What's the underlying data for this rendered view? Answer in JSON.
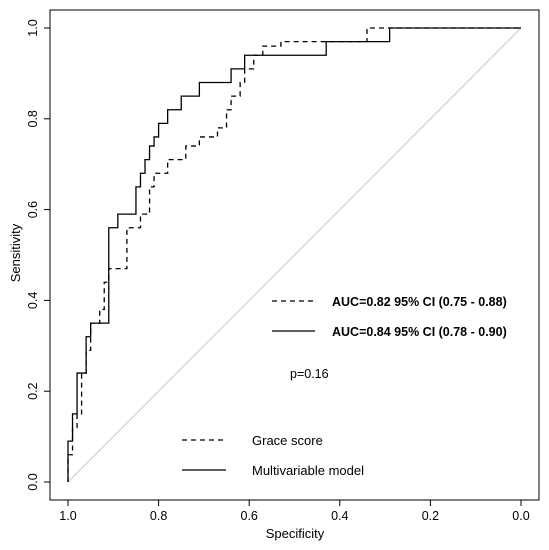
{
  "chart_data": {
    "type": "line",
    "xlabel": "Specificity",
    "ylabel": "Sensitivity",
    "xlim": [
      1.0,
      0.0
    ],
    "ylim": [
      0.0,
      1.0
    ],
    "x_reversed": true,
    "x_ticks": [
      "1.0",
      "0.8",
      "0.6",
      "0.4",
      "0.2",
      "0.0"
    ],
    "y_ticks": [
      "0.0",
      "0.2",
      "0.4",
      "0.6",
      "0.8",
      "1.0"
    ],
    "reference_line": {
      "from": [
        1.0,
        0.0
      ],
      "to": [
        0.0,
        1.0
      ],
      "color": "#c8c8c8"
    },
    "grid": false,
    "series": [
      {
        "name": "Grace score",
        "style": "dashed",
        "auc_label": "AUC=0.82 95% CI (0.75 - 0.88)",
        "points": [
          [
            1.0,
            0.0
          ],
          [
            1.0,
            0.06
          ],
          [
            0.99,
            0.06
          ],
          [
            0.99,
            0.12
          ],
          [
            0.98,
            0.12
          ],
          [
            0.98,
            0.15
          ],
          [
            0.97,
            0.15
          ],
          [
            0.97,
            0.24
          ],
          [
            0.96,
            0.24
          ],
          [
            0.96,
            0.29
          ],
          [
            0.95,
            0.29
          ],
          [
            0.95,
            0.35
          ],
          [
            0.93,
            0.35
          ],
          [
            0.93,
            0.38
          ],
          [
            0.92,
            0.38
          ],
          [
            0.92,
            0.44
          ],
          [
            0.91,
            0.44
          ],
          [
            0.91,
            0.47
          ],
          [
            0.87,
            0.47
          ],
          [
            0.87,
            0.56
          ],
          [
            0.84,
            0.56
          ],
          [
            0.84,
            0.59
          ],
          [
            0.82,
            0.59
          ],
          [
            0.82,
            0.65
          ],
          [
            0.81,
            0.65
          ],
          [
            0.81,
            0.68
          ],
          [
            0.78,
            0.68
          ],
          [
            0.78,
            0.71
          ],
          [
            0.74,
            0.71
          ],
          [
            0.74,
            0.74
          ],
          [
            0.71,
            0.74
          ],
          [
            0.71,
            0.76
          ],
          [
            0.67,
            0.76
          ],
          [
            0.67,
            0.78
          ],
          [
            0.65,
            0.78
          ],
          [
            0.65,
            0.82
          ],
          [
            0.64,
            0.82
          ],
          [
            0.64,
            0.85
          ],
          [
            0.62,
            0.85
          ],
          [
            0.62,
            0.88
          ],
          [
            0.61,
            0.88
          ],
          [
            0.61,
            0.91
          ],
          [
            0.59,
            0.91
          ],
          [
            0.59,
            0.94
          ],
          [
            0.57,
            0.94
          ],
          [
            0.57,
            0.96
          ],
          [
            0.53,
            0.96
          ],
          [
            0.53,
            0.97
          ],
          [
            0.42,
            0.97
          ],
          [
            0.34,
            0.97
          ],
          [
            0.34,
            1.0
          ],
          [
            0.0,
            1.0
          ]
        ]
      },
      {
        "name": "Multivariable model",
        "style": "solid",
        "auc_label": "AUC=0.84 95% CI (0.78 - 0.90)",
        "points": [
          [
            1.0,
            0.0
          ],
          [
            1.0,
            0.09
          ],
          [
            0.99,
            0.09
          ],
          [
            0.99,
            0.15
          ],
          [
            0.98,
            0.15
          ],
          [
            0.98,
            0.24
          ],
          [
            0.96,
            0.24
          ],
          [
            0.96,
            0.32
          ],
          [
            0.95,
            0.32
          ],
          [
            0.95,
            0.35
          ],
          [
            0.91,
            0.35
          ],
          [
            0.91,
            0.56
          ],
          [
            0.89,
            0.56
          ],
          [
            0.89,
            0.59
          ],
          [
            0.85,
            0.59
          ],
          [
            0.85,
            0.65
          ],
          [
            0.84,
            0.65
          ],
          [
            0.84,
            0.68
          ],
          [
            0.83,
            0.68
          ],
          [
            0.83,
            0.71
          ],
          [
            0.82,
            0.71
          ],
          [
            0.82,
            0.74
          ],
          [
            0.81,
            0.74
          ],
          [
            0.81,
            0.76
          ],
          [
            0.8,
            0.76
          ],
          [
            0.8,
            0.79
          ],
          [
            0.78,
            0.79
          ],
          [
            0.78,
            0.82
          ],
          [
            0.75,
            0.82
          ],
          [
            0.75,
            0.85
          ],
          [
            0.71,
            0.85
          ],
          [
            0.71,
            0.88
          ],
          [
            0.64,
            0.88
          ],
          [
            0.64,
            0.91
          ],
          [
            0.61,
            0.91
          ],
          [
            0.61,
            0.94
          ],
          [
            0.43,
            0.94
          ],
          [
            0.43,
            0.97
          ],
          [
            0.29,
            0.97
          ],
          [
            0.29,
            1.0
          ],
          [
            0.0,
            1.0
          ]
        ]
      }
    ],
    "annotations": {
      "p_value": "p=0.16"
    },
    "legend": {
      "placement": "bottom-center",
      "entries": [
        "Grace score",
        "Multivariable model"
      ]
    }
  }
}
